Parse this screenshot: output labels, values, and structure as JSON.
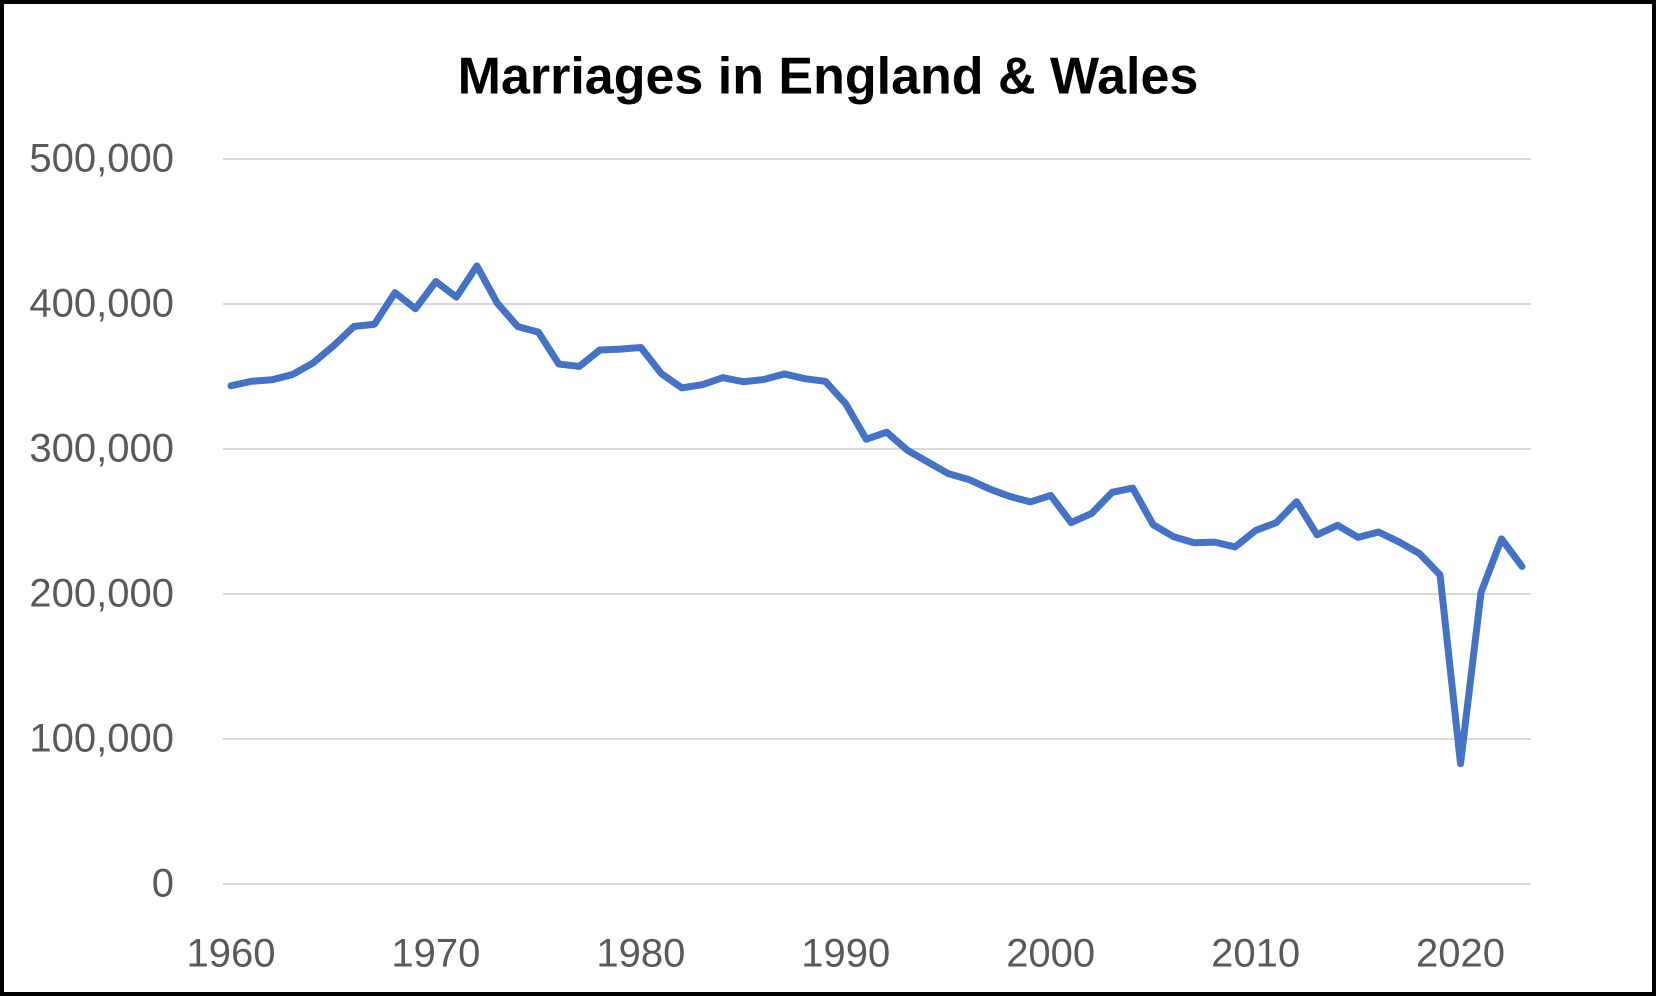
{
  "chart_data": {
    "type": "line",
    "title": "Marriages in England & Wales",
    "x": [
      1960,
      1961,
      1962,
      1963,
      1964,
      1965,
      1966,
      1967,
      1968,
      1969,
      1970,
      1971,
      1972,
      1973,
      1974,
      1975,
      1976,
      1977,
      1978,
      1979,
      1980,
      1981,
      1982,
      1983,
      1984,
      1985,
      1986,
      1987,
      1988,
      1989,
      1990,
      1991,
      1992,
      1993,
      1994,
      1995,
      1996,
      1997,
      1998,
      1999,
      2000,
      2001,
      2002,
      2003,
      2004,
      2005,
      2006,
      2007,
      2008,
      2009,
      2010,
      2011,
      2012,
      2013,
      2014,
      2015,
      2016,
      2017,
      2018,
      2019,
      2020,
      2021,
      2022,
      2023
    ],
    "series": [
      {
        "name": "Marriages",
        "color": "#4472c4",
        "values": [
          343614,
          346678,
          347732,
          351329,
          359307,
          371127,
          384497,
          386052,
          407822,
          396746,
          415487,
          404737,
          426241,
          400435,
          384389,
          380620,
          358567,
          356954,
          368258,
          368853,
          370022,
          351973,
          342166,
          344334,
          349186,
          346389,
          347924,
          351761,
          348492,
          346697,
          331150,
          306756,
          311564,
          299197,
          291069,
          283012,
          278975,
          272536,
          267303,
          263515,
          267961,
          249227,
          255596,
          270109,
          273069,
          247805,
          239454,
          235367,
          235794,
          232443,
          243808,
          249133,
          263640,
          240854,
          247372,
          239020,
          242774,
          235910,
          227870,
          213122,
          83000,
          201000,
          238000,
          219000
        ]
      }
    ],
    "xlim": [
      1960,
      2023
    ],
    "xticks": [
      1960,
      1970,
      1980,
      1990,
      2000,
      2010,
      2020
    ],
    "ylim": [
      0,
      500000
    ],
    "yticks": [
      0,
      {
        "value": 100000,
        "label": "100,000"
      },
      {
        "value": 200000,
        "label": "200,000"
      },
      {
        "value": 300000,
        "label": "300,000"
      },
      {
        "value": 400000,
        "label": "400,000"
      },
      {
        "value": 500000,
        "label": "500,000"
      }
    ],
    "grid": true
  }
}
